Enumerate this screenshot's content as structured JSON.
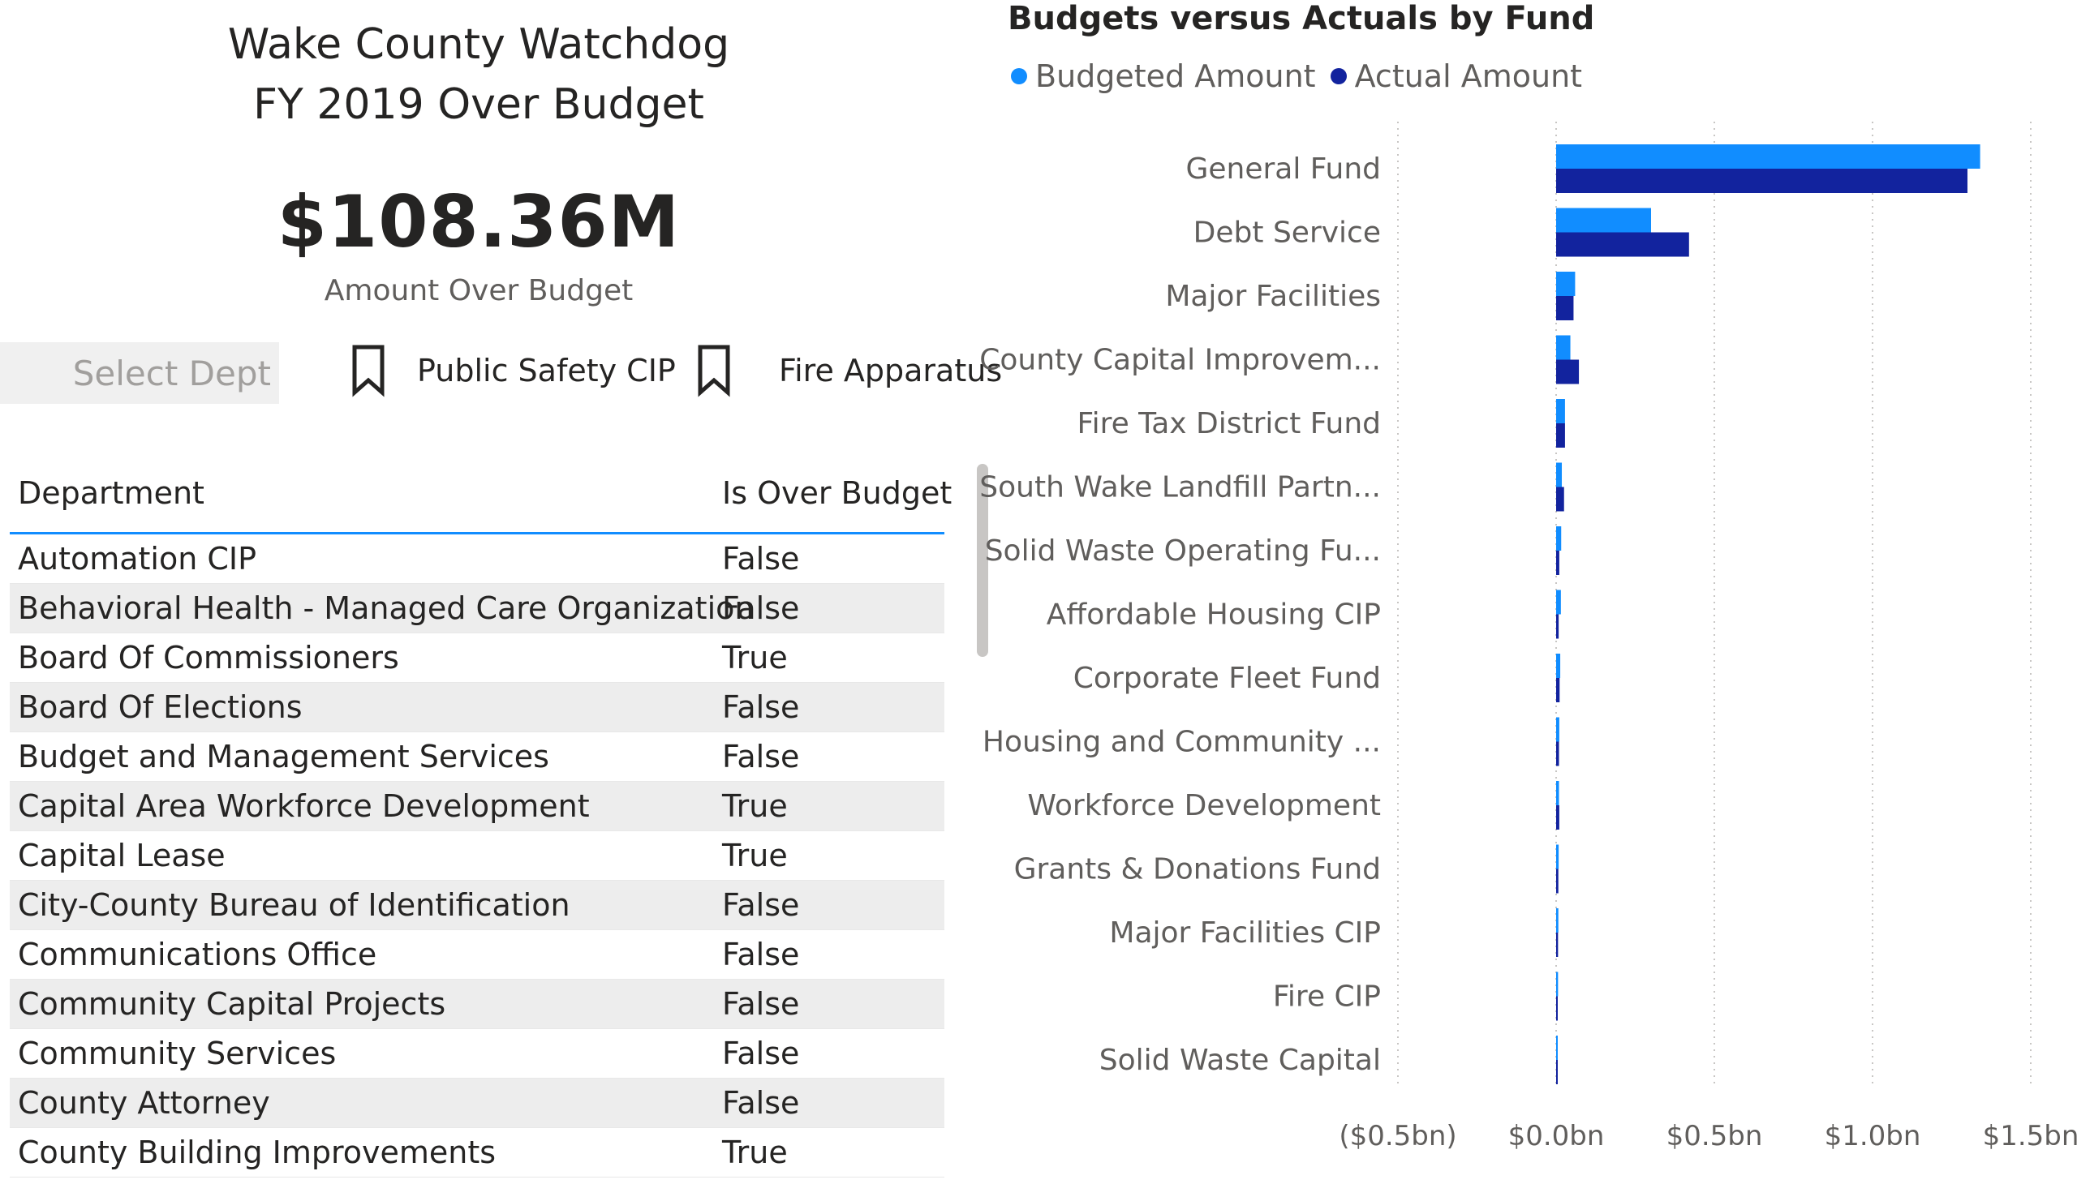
{
  "header": {
    "title_line1": "Wake County Watchdog",
    "title_line2": "FY 2019 Over Budget"
  },
  "kpi": {
    "value": "$108.36M",
    "label": "Amount Over Budget"
  },
  "slicer": {
    "placeholder": "Select Dept"
  },
  "bookmarks": [
    {
      "label": "Public Safety CIP",
      "icon": "bookmark-icon"
    },
    {
      "label": "Fire Apparatus",
      "icon": "bookmark-icon"
    }
  ],
  "table": {
    "columns": [
      "Department",
      "Is Over Budget"
    ],
    "rows": [
      [
        "Automation CIP",
        "False"
      ],
      [
        "Behavioral Health - Managed Care Organization",
        "False"
      ],
      [
        "Board Of Commissioners",
        "True"
      ],
      [
        "Board Of Elections",
        "False"
      ],
      [
        "Budget and Management Services",
        "False"
      ],
      [
        "Capital Area Workforce Development",
        "True"
      ],
      [
        "Capital Lease",
        "True"
      ],
      [
        "City-County Bureau of Identification",
        "False"
      ],
      [
        "Communications Office",
        "False"
      ],
      [
        "Community Capital Projects",
        "False"
      ],
      [
        "Community Services",
        "False"
      ],
      [
        "County Attorney",
        "False"
      ],
      [
        "County Building Improvements",
        "True"
      ]
    ]
  },
  "colors": {
    "budgeted": "#118dff",
    "actual": "#12239e",
    "accent": "#118dff"
  },
  "chart_data": {
    "type": "bar",
    "orientation": "horizontal",
    "title": "Budgets versus Actuals by Fund",
    "legend_position": "top-left",
    "categories": [
      "General Fund",
      "Debt Service",
      "Major Facilities",
      "County Capital Improvem...",
      "Fire Tax District Fund",
      "South Wake Landfill Partn...",
      "Solid Waste Operating Fu...",
      "Affordable Housing CIP",
      "Corporate Fleet Fund",
      "Housing and Community ...",
      "Workforce Development",
      "Grants & Donations Fund",
      "Major Facilities CIP",
      "Fire CIP",
      "Solid Waste Capital"
    ],
    "series": [
      {
        "name": "Budgeted Amount",
        "values": [
          1.34,
          0.3,
          0.06,
          0.045,
          0.028,
          0.018,
          0.016,
          0.015,
          0.013,
          0.01,
          0.009,
          0.008,
          0.007,
          0.006,
          0.005
        ]
      },
      {
        "name": "Actual Amount",
        "values": [
          1.3,
          0.42,
          0.055,
          0.072,
          0.028,
          0.025,
          0.01,
          0.008,
          0.011,
          0.009,
          0.01,
          0.007,
          0.006,
          0.005,
          0.004
        ]
      }
    ],
    "xlim": [
      -0.5,
      1.5
    ],
    "x_ticks": [
      "($0.5bn)",
      "$0.0bn",
      "$0.5bn",
      "$1.0bn",
      "$1.5bn"
    ],
    "x_tick_values": [
      -0.5,
      0.0,
      0.5,
      1.0,
      1.5
    ],
    "grid": true
  }
}
